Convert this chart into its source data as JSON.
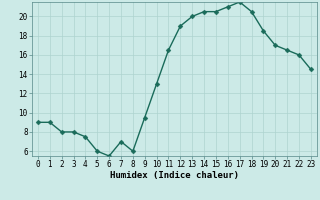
{
  "x": [
    0,
    1,
    2,
    3,
    4,
    5,
    6,
    7,
    8,
    9,
    10,
    11,
    12,
    13,
    14,
    15,
    16,
    17,
    18,
    19,
    20,
    21,
    22,
    23
  ],
  "y": [
    9,
    9,
    8,
    8,
    7.5,
    6,
    5.5,
    7,
    6,
    9.5,
    13,
    16.5,
    19,
    20,
    20.5,
    20.5,
    21,
    21.5,
    20.5,
    18.5,
    17,
    16.5,
    16,
    14.5
  ],
  "line_color": "#1a6b5a",
  "marker_color": "#1a6b5a",
  "bg_color": "#cceae7",
  "grid_color": "#aed4d0",
  "xlabel": "Humidex (Indice chaleur)",
  "xlim": [
    -0.5,
    23.5
  ],
  "ylim": [
    5.5,
    21.5
  ],
  "yticks": [
    6,
    8,
    10,
    12,
    14,
    16,
    18,
    20
  ],
  "xticks": [
    0,
    1,
    2,
    3,
    4,
    5,
    6,
    7,
    8,
    9,
    10,
    11,
    12,
    13,
    14,
    15,
    16,
    17,
    18,
    19,
    20,
    21,
    22,
    23
  ],
  "tick_fontsize": 5.5,
  "xlabel_fontsize": 6.5,
  "marker_size": 2.5,
  "line_width": 1.0
}
